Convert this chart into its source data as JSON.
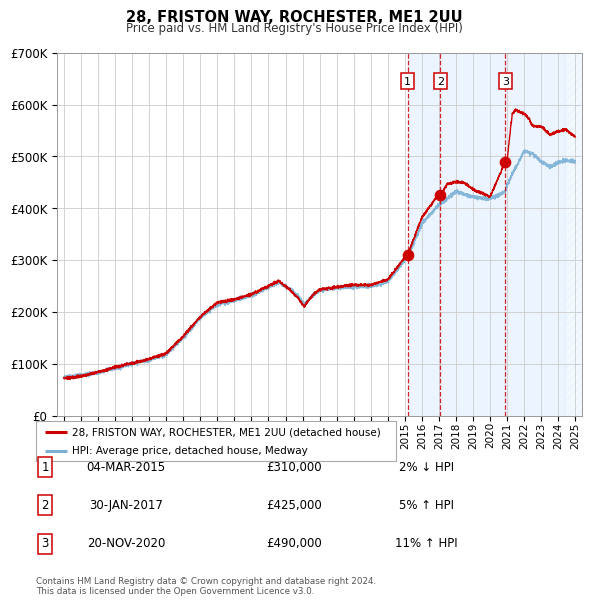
{
  "title": "28, FRISTON WAY, ROCHESTER, ME1 2UU",
  "subtitle": "Price paid vs. HM Land Registry's House Price Index (HPI)",
  "ylim": [
    0,
    700000
  ],
  "yticks": [
    0,
    100000,
    200000,
    300000,
    400000,
    500000,
    600000,
    700000
  ],
  "ytick_labels": [
    "£0",
    "£100K",
    "£200K",
    "£300K",
    "£400K",
    "£500K",
    "£600K",
    "£700K"
  ],
  "background_color": "#ffffff",
  "plot_bg_color": "#ffffff",
  "grid_color": "#cccccc",
  "hpi_line_color": "#7bafd4",
  "price_line_color": "#cc0000",
  "sale_marker_color": "#cc0000",
  "dashed_line_color": "#cc0000",
  "shade_color": "#ddeeff",
  "transactions": [
    {
      "date_decimal": 2015.17,
      "price": 310000,
      "label": "1"
    },
    {
      "date_decimal": 2017.08,
      "price": 425000,
      "label": "2"
    },
    {
      "date_decimal": 2020.9,
      "price": 490000,
      "label": "3"
    }
  ],
  "transaction_labels": [
    {
      "label": "1",
      "date": "04-MAR-2015",
      "price": "£310,000",
      "change": "2% ↓ HPI"
    },
    {
      "label": "2",
      "date": "30-JAN-2017",
      "price": "£425,000",
      "change": "5% ↑ HPI"
    },
    {
      "label": "3",
      "date": "20-NOV-2020",
      "price": "£490,000",
      "change": "11% ↑ HPI"
    }
  ],
  "legend_line1": "28, FRISTON WAY, ROCHESTER, ME1 2UU (detached house)",
  "legend_line2": "HPI: Average price, detached house, Medway",
  "footnote": "Contains HM Land Registry data © Crown copyright and database right 2024.\nThis data is licensed under the Open Government Licence v3.0.",
  "shade_start": 2015.17,
  "hatch_start": 2024.42,
  "x_min": 1994.6,
  "x_max": 2025.4
}
